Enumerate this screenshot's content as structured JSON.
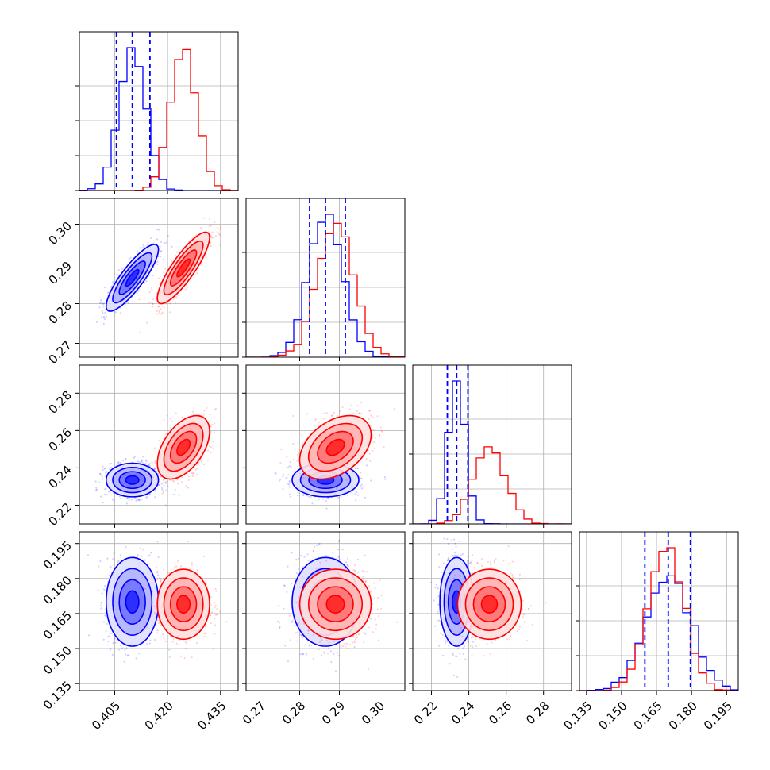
{
  "chart_data": {
    "type": "scatter",
    "title": "",
    "n_parameters": 4,
    "grid": true,
    "legend": "none",
    "series_colors": {
      "first": "#0000ff",
      "second": "#ff0000"
    },
    "parameters": [
      {
        "index": 0,
        "range": [
          0.395,
          0.44
        ],
        "ticks": [
          0.405,
          0.42,
          0.435
        ],
        "tick_labels": [
          "0.405",
          "0.420",
          "0.435"
        ]
      },
      {
        "index": 1,
        "range": [
          0.2665,
          0.3065
        ],
        "ticks": [
          0.27,
          0.28,
          0.29,
          0.3
        ],
        "tick_labels": [
          "0.27",
          "0.28",
          "0.29",
          "0.30"
        ]
      },
      {
        "index": 2,
        "range": [
          0.21,
          0.295
        ],
        "ticks": [
          0.22,
          0.24,
          0.26,
          0.28
        ],
        "tick_labels": [
          "0.22",
          "0.24",
          "0.26",
          "0.28"
        ]
      },
      {
        "index": 3,
        "range": [
          0.132,
          0.2
        ],
        "ticks": [
          0.135,
          0.15,
          0.165,
          0.18,
          0.195
        ],
        "tick_labels": [
          "0.135",
          "0.150",
          "0.165",
          "0.180",
          "0.195"
        ]
      }
    ],
    "series": [
      {
        "color": "#0000ff",
        "means": [
          0.41,
          0.2865,
          0.2335,
          0.17
        ],
        "stds": [
          0.0037,
          0.0042,
          0.0045,
          0.0095
        ],
        "correlations": {
          "0-1": 0.85,
          "0-2": 0.0,
          "0-3": 0.0,
          "1-2": 0.0,
          "1-3": 0.0,
          "2-3": 0.0
        },
        "quantile_lines": [
          [
            0.4055,
            0.41,
            0.415
          ],
          [
            0.2825,
            0.2865,
            0.2915
          ],
          [
            0.2285,
            0.2335,
            0.2395
          ],
          [
            0.16,
            0.17,
            0.1795
          ]
        ]
      },
      {
        "color": "#ff0000",
        "means": [
          0.4245,
          0.289,
          0.251
        ],
        "stds": [
          0.0037,
          0.0045,
          0.0085,
          0.0075
        ],
        "mean_3": 0.169,
        "correlations": {
          "0-1": 0.85,
          "0-2": 0.5,
          "0-3": 0.0,
          "1-2": 0.4,
          "1-3": 0.0,
          "2-3": 0.0
        }
      }
    ]
  }
}
